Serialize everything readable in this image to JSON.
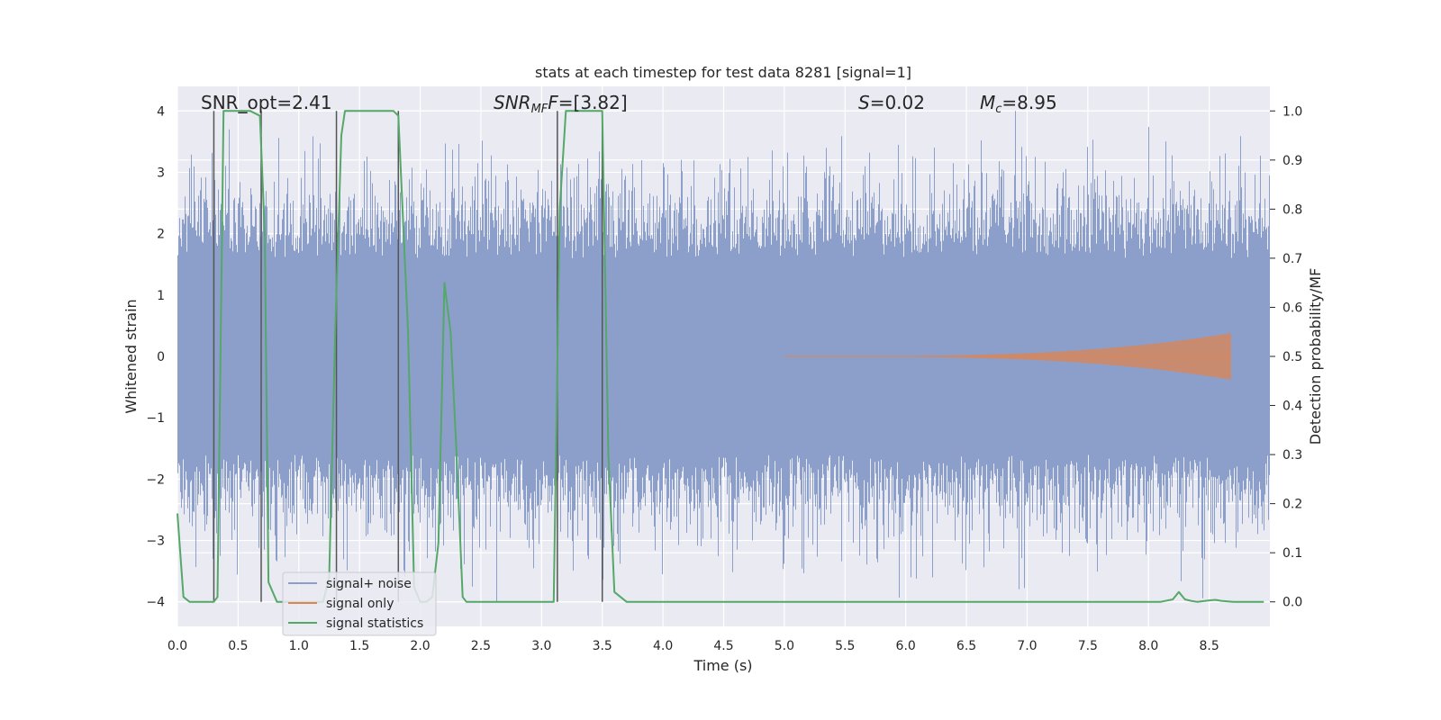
{
  "chart_data": {
    "type": "line",
    "title": "stats at each timestep for test data 8281 [signal=1]",
    "xlabel": "Time (s)",
    "ylabel": "Whitened strain",
    "ylabel_right": "Detection probability/MF",
    "xlim": [
      0.0,
      9.0
    ],
    "ylim": [
      -4.4,
      4.4
    ],
    "ylim_right": [
      -0.05,
      1.05
    ],
    "xticks": [
      0.0,
      0.5,
      1.0,
      1.5,
      2.0,
      2.5,
      3.0,
      3.5,
      4.0,
      4.5,
      5.0,
      5.5,
      6.0,
      6.5,
      7.0,
      7.5,
      8.0,
      8.5
    ],
    "xtick_labels": [
      "0.0",
      "0.5",
      "1.0",
      "1.5",
      "2.0",
      "2.5",
      "3.0",
      "3.5",
      "4.0",
      "4.5",
      "5.0",
      "5.5",
      "6.0",
      "6.5",
      "7.0",
      "7.5",
      "8.0",
      "8.5"
    ],
    "yticks": [
      -4,
      -3,
      -2,
      -1,
      0,
      1,
      2,
      3,
      4
    ],
    "ytick_labels": [
      "−4",
      "−3",
      "−2",
      "−1",
      "0",
      "1",
      "2",
      "3",
      "4"
    ],
    "yticks_right": [
      0.0,
      0.1,
      0.2,
      0.3,
      0.4,
      0.5,
      0.6,
      0.7,
      0.8,
      0.9,
      1.0
    ],
    "ytick_labels_right": [
      "0.0",
      "0.1",
      "0.2",
      "0.3",
      "0.4",
      "0.5",
      "0.6",
      "0.7",
      "0.8",
      "0.9",
      "1.0"
    ],
    "grid": true,
    "legend_placement": "lower-left",
    "annotations": {
      "snr_opt": "SNR_opt=2.41",
      "snr_mf_name": "SNR",
      "snr_mf_sub": "MF",
      "snr_mf_value": "=[3.82]",
      "s_name": "S",
      "s_value": "=0.02",
      "mc_name": "M",
      "mc_sub": "c",
      "mc_value": "=8.95"
    },
    "colors": {
      "noise": "#8c9fcb",
      "signal": "#dd8452",
      "stats": "#55a868",
      "vlines": "#555555",
      "plot_bg": "#eaeaf2",
      "grid": "#ffffff"
    },
    "series": [
      {
        "name": "signal+ noise",
        "kind": "noise_band",
        "x_start": 0.0,
        "x_end": 9.0,
        "typical_abs": 1.6,
        "peak_max": 4.0,
        "peak_min": -4.0
      },
      {
        "name": "signal only",
        "kind": "chirp",
        "x_start": 5.0,
        "x_end": 8.68,
        "amp_start": 0.0,
        "amp_end": 0.38
      },
      {
        "name": "signal statistics",
        "axis": "right",
        "x": [
          0.0,
          0.05,
          0.1,
          0.2,
          0.3,
          0.33,
          0.38,
          0.5,
          0.6,
          0.68,
          0.72,
          0.75,
          0.82,
          0.9,
          1.0,
          1.1,
          1.2,
          1.25,
          1.3,
          1.35,
          1.38,
          1.5,
          1.6,
          1.7,
          1.78,
          1.82,
          1.9,
          1.95,
          2.0,
          2.05,
          2.1,
          2.15,
          2.2,
          2.25,
          2.3,
          2.35,
          2.38,
          2.45,
          2.6,
          2.8,
          3.0,
          3.1,
          3.15,
          3.2,
          3.3,
          3.4,
          3.5,
          3.55,
          3.6,
          3.7,
          4.0,
          5.0,
          6.0,
          7.0,
          8.0,
          8.1,
          8.2,
          8.25,
          8.3,
          8.35,
          8.4,
          8.5,
          8.55,
          8.6,
          8.7,
          8.8,
          8.95
        ],
        "y": [
          0.18,
          0.01,
          0.0,
          0.0,
          0.0,
          0.01,
          1.0,
          1.0,
          1.0,
          0.99,
          0.75,
          0.04,
          0.0,
          0.0,
          0.0,
          0.0,
          0.0,
          0.05,
          0.55,
          0.95,
          1.0,
          1.0,
          1.0,
          1.0,
          1.0,
          0.99,
          0.55,
          0.03,
          0.0,
          0.0,
          0.01,
          0.12,
          0.65,
          0.55,
          0.3,
          0.01,
          0.0,
          0.0,
          0.0,
          0.0,
          0.0,
          0.0,
          0.8,
          1.0,
          1.0,
          1.0,
          1.0,
          0.3,
          0.02,
          0.0,
          0.0,
          0.0,
          0.0,
          0.0,
          0.0,
          0.0,
          0.005,
          0.02,
          0.005,
          0.002,
          0.0,
          0.003,
          0.004,
          0.002,
          0.0,
          0.0,
          0.0
        ]
      }
    ],
    "vlines": [
      0.3,
      0.69,
      1.31,
      1.82,
      3.13,
      3.5
    ]
  }
}
